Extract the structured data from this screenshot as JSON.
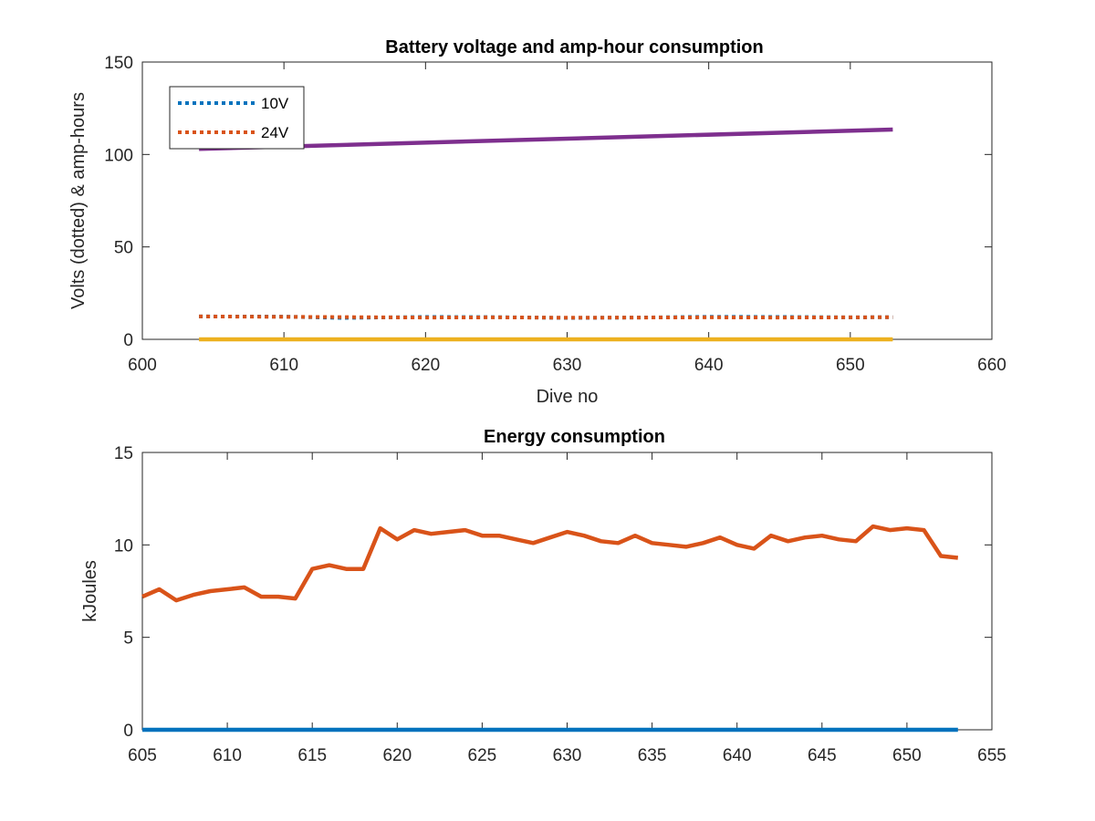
{
  "chart_data": [
    {
      "type": "line",
      "title": "Battery voltage and amp-hour consumption",
      "xlabel": "Dive no",
      "ylabel": "Volts (dotted) & amp-hours",
      "xlim": [
        600,
        660
      ],
      "ylim": [
        0,
        150
      ],
      "xticks": [
        600,
        610,
        620,
        630,
        640,
        650,
        660
      ],
      "yticks": [
        0,
        50,
        100,
        150
      ],
      "grid": false,
      "legend": "top-left",
      "series": [
        {
          "name": "10V",
          "style": "dotted",
          "color": "#0072BD",
          "in_legend": true,
          "points": [
            [
              604,
              12.4
            ],
            [
              610,
              12.3
            ],
            [
              614,
              11.6
            ],
            [
              620,
              12.1
            ],
            [
              625,
              12.0
            ],
            [
              630,
              11.6
            ],
            [
              635,
              11.8
            ],
            [
              640,
              12.2
            ],
            [
              645,
              12.1
            ],
            [
              650,
              11.9
            ],
            [
              653,
              12.0
            ]
          ]
        },
        {
          "name": "24V",
          "style": "dotted",
          "color": "#D95319",
          "in_legend": true,
          "points": [
            [
              604,
              12.4
            ],
            [
              610,
              12.2
            ],
            [
              615,
              12.0
            ],
            [
              620,
              11.8
            ],
            [
              625,
              11.9
            ],
            [
              630,
              11.7
            ],
            [
              635,
              11.8
            ],
            [
              640,
              11.9
            ],
            [
              645,
              11.8
            ],
            [
              650,
              11.9
            ],
            [
              653,
              12.0
            ]
          ]
        },
        {
          "style": "solid",
          "color": "#EDB120",
          "in_legend": false,
          "points": [
            [
              604,
              0
            ],
            [
              653,
              0
            ]
          ]
        },
        {
          "style": "solid",
          "color": "#7E2F8E",
          "in_legend": false,
          "points": [
            [
              604,
              103
            ],
            [
              653,
              113.5
            ]
          ]
        }
      ]
    },
    {
      "type": "line",
      "title": "Energy consumption",
      "xlabel": "",
      "ylabel": "kJoules",
      "xlim": [
        605,
        655
      ],
      "ylim": [
        0,
        15
      ],
      "xticks": [
        605,
        610,
        615,
        620,
        625,
        630,
        635,
        640,
        645,
        650,
        655
      ],
      "yticks": [
        0,
        5,
        10,
        15
      ],
      "grid": false,
      "series": [
        {
          "style": "solid",
          "color": "#0072BD",
          "points": [
            [
              605,
              0
            ],
            [
              653,
              0
            ]
          ]
        },
        {
          "style": "solid",
          "color": "#D95319",
          "points": [
            [
              605,
              7.2
            ],
            [
              606,
              7.6
            ],
            [
              607,
              7.0
            ],
            [
              608,
              7.3
            ],
            [
              609,
              7.5
            ],
            [
              610,
              7.6
            ],
            [
              611,
              7.7
            ],
            [
              612,
              7.2
            ],
            [
              613,
              7.2
            ],
            [
              614,
              7.1
            ],
            [
              615,
              8.7
            ],
            [
              616,
              8.9
            ],
            [
              617,
              8.7
            ],
            [
              618,
              8.7
            ],
            [
              619,
              10.9
            ],
            [
              620,
              10.3
            ],
            [
              621,
              10.8
            ],
            [
              622,
              10.6
            ],
            [
              623,
              10.7
            ],
            [
              624,
              10.8
            ],
            [
              625,
              10.5
            ],
            [
              626,
              10.5
            ],
            [
              627,
              10.3
            ],
            [
              628,
              10.1
            ],
            [
              629,
              10.4
            ],
            [
              630,
              10.7
            ],
            [
              631,
              10.5
            ],
            [
              632,
              10.2
            ],
            [
              633,
              10.1
            ],
            [
              634,
              10.5
            ],
            [
              635,
              10.1
            ],
            [
              636,
              10.0
            ],
            [
              637,
              9.9
            ],
            [
              638,
              10.1
            ],
            [
              639,
              10.4
            ],
            [
              640,
              10.0
            ],
            [
              641,
              9.8
            ],
            [
              642,
              10.5
            ],
            [
              643,
              10.2
            ],
            [
              644,
              10.4
            ],
            [
              645,
              10.5
            ],
            [
              646,
              10.3
            ],
            [
              647,
              10.2
            ],
            [
              648,
              11.0
            ],
            [
              649,
              10.8
            ],
            [
              650,
              10.9
            ],
            [
              651,
              10.8
            ],
            [
              652,
              9.4
            ],
            [
              653,
              9.3
            ]
          ]
        }
      ]
    }
  ]
}
